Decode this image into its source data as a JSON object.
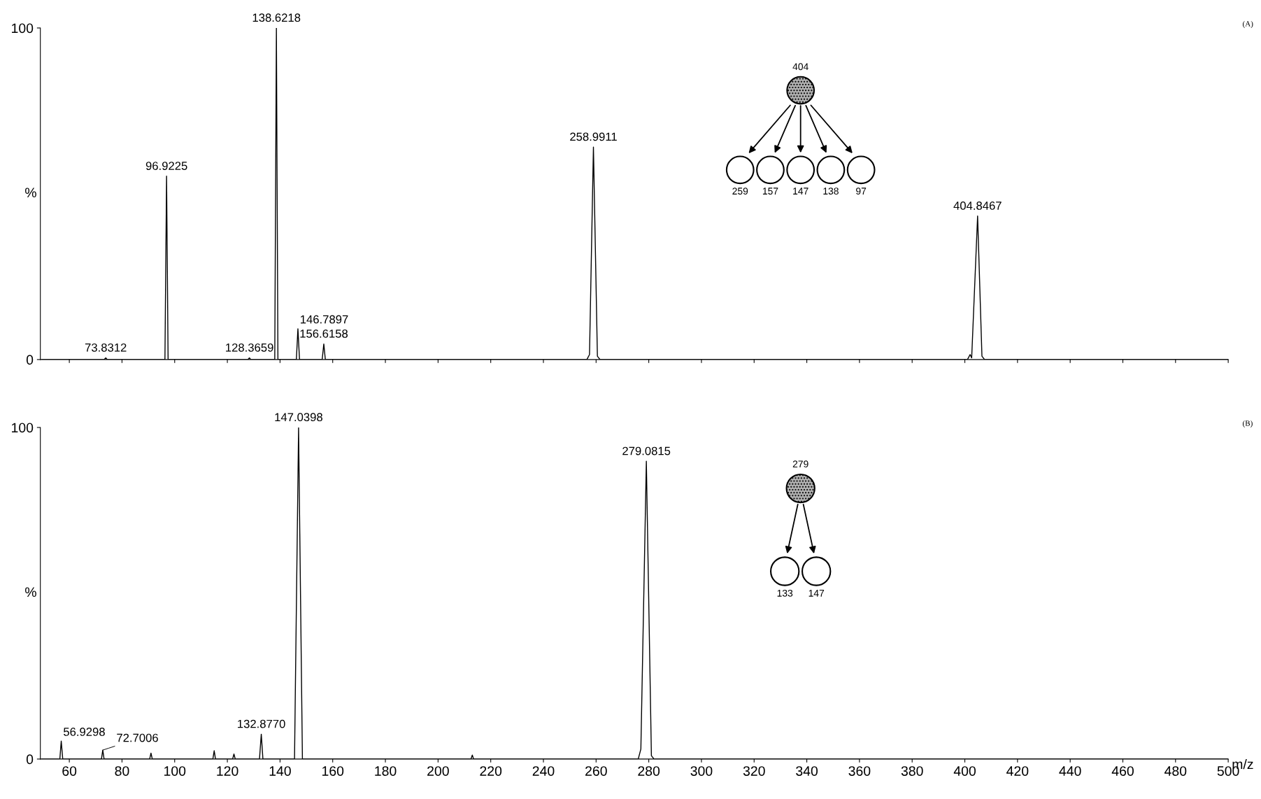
{
  "chart_data": [
    {
      "type": "line",
      "ylabel": "%",
      "tick_labels": "y",
      "xlim": [
        49,
        500
      ],
      "xticks": [
        60,
        80,
        100,
        120,
        140,
        160,
        180,
        200,
        220,
        240,
        260,
        280,
        300,
        320,
        340,
        360,
        380,
        400,
        420,
        440,
        460,
        480,
        500
      ],
      "ylim": [
        0,
        100
      ],
      "yticks": [
        0,
        100
      ],
      "series": [
        {
          "color": "#000000",
          "x": [
            49.5,
            73.2,
            73.83,
            74.4,
            96.3,
            96.92,
            97.5,
            127.8,
            128.37,
            128.9,
            138.0,
            138.62,
            139.2,
            146.2,
            146.79,
            147.4,
            156.0,
            156.62,
            157.2,
            256.5,
            257.5,
            258.99,
            260.5,
            261.5,
            401,
            402,
            402.6,
            404.85,
            406.5,
            407.5,
            500
          ],
          "values": [
            0,
            0,
            0.5,
            0,
            0,
            55.3,
            0,
            0,
            0.5,
            0,
            0,
            100,
            0,
            0,
            9.3,
            0,
            0,
            4.7,
            0,
            0,
            1.5,
            64.1,
            1,
            0,
            0,
            1.5,
            0.5,
            43.3,
            1,
            0,
            0
          ]
        }
      ],
      "annotations": [
        "(A)",
        "404",
        "259",
        "157",
        "147",
        "138",
        "97",
        {
          "text": "73.8312",
          "x": 73.83,
          "y": 0.5
        },
        {
          "text": "96.9225",
          "x": 96.92,
          "y": 55.3
        },
        {
          "text": "128.3659",
          "x": 128.37,
          "y": 0.5
        },
        {
          "text": "138.6218",
          "x": 138.62,
          "y": 100
        },
        {
          "text": "146.7897",
          "x": 146.79,
          "y": 9.3
        },
        {
          "text": "156.6158",
          "x": 156.62,
          "y": 4.7
        },
        {
          "text": "258.9911",
          "x": 258.99,
          "y": 64.1
        },
        {
          "text": "404.8467",
          "x": 404.85,
          "y": 43.3
        }
      ]
    },
    {
      "type": "line",
      "ylabel": "%",
      "xlabel": "m/z",
      "xlim": [
        49,
        500
      ],
      "xticks": [
        60,
        80,
        100,
        120,
        140,
        160,
        180,
        200,
        220,
        240,
        260,
        280,
        300,
        320,
        340,
        360,
        380,
        400,
        420,
        440,
        460,
        480,
        500
      ],
      "ylim": [
        0,
        100
      ],
      "yticks": [
        0,
        100
      ],
      "series": [
        {
          "color": "#000000",
          "x": [
            49.5,
            56.4,
            56.93,
            57.5,
            72.2,
            72.7,
            73.2,
            90.5,
            91,
            91.5,
            114.5,
            115,
            115.5,
            122,
            122.5,
            123,
            132.2,
            132.88,
            133.5,
            145.5,
            147.04,
            148.5,
            212.5,
            213,
            213.5,
            276,
            277,
            279.08,
            281,
            282,
            500
          ],
          "values": [
            0,
            0,
            5.4,
            0,
            0,
            2.7,
            0,
            0,
            1.8,
            0,
            0,
            2.5,
            0,
            0,
            1.5,
            0,
            0,
            7.5,
            0,
            0,
            100,
            0,
            0,
            1.2,
            0,
            0,
            3,
            89.8,
            1,
            0,
            0
          ]
        }
      ],
      "annotations": [
        "(B)",
        "279",
        "133",
        "147",
        {
          "text": "56.9298",
          "x": 56.93,
          "y": 5.4
        },
        {
          "text": "72.7006",
          "x": 72.7,
          "y": 2.7
        },
        {
          "text": "132.8770",
          "x": 132.88,
          "y": 7.5
        },
        {
          "text": "147.0398",
          "x": 147.04,
          "y": 100
        },
        {
          "text": "279.0815",
          "x": 279.08,
          "y": 89.8
        }
      ]
    }
  ]
}
